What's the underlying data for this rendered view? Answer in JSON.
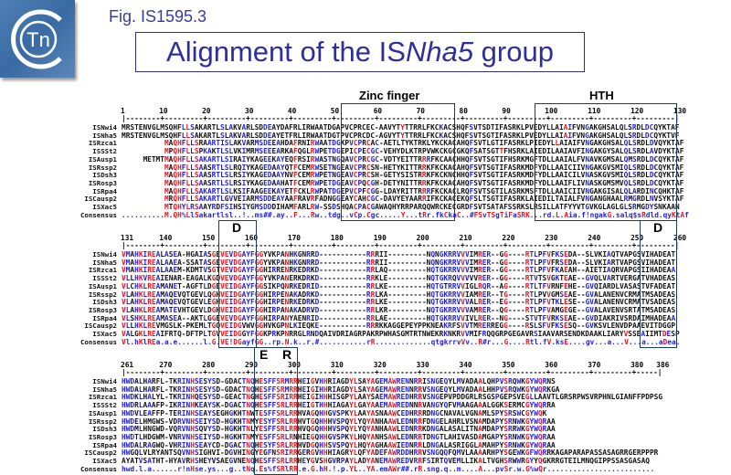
{
  "header": {
    "logo_text": "Tn",
    "figure_label": "Fig. IS1595.3",
    "title_prefix": "Alignment of the IS",
    "title_italic": "Nha5",
    "title_suffix": " group"
  },
  "annotations": {
    "zinc_finger": "Zinc finger",
    "hth": "HTH",
    "d1": "D",
    "d2": "D",
    "e": "E",
    "r": "R"
  },
  "colors": {
    "conserved_high": "#e8141e",
    "conserved_low": "#1e1ee6",
    "box": "#1d3b66",
    "title": "#2f2f9c"
  },
  "alignment": {
    "names": [
      "ISNwi4",
      "ISNha5",
      "ISRzca1",
      "ISSSt2",
      "ISAusp1",
      "ISRssp2",
      "ISDsh3",
      "ISRosp3",
      "ISRpa4",
      "ISCausp2",
      "ISXac5",
      "Consensus"
    ],
    "blocks": [
      {
        "start": 1,
        "end": 130,
        "ticks": [
          1,
          10,
          20,
          30,
          40,
          50,
          60,
          70,
          80,
          90,
          100,
          110,
          120,
          130
        ],
        "rows": [
          "MRSTENVGLMSQHFLLSAKARTLSLAKVARLSDDEAYDAFRLIRWAATDGAPVCPRCEC-AAVYTYTTRRLFKCKACSHQFSVTSDTIFASRKLPVEDYLLAIAIFVNGAKGHSALQLSRDLDCQYKTAF",
          "MRSTENVGLMSQHFLLSAKARTLSLAKVARLSDDEAYETFRLIRWAATDGTPVCPRCDC-AGVYTYTTRRLFKCKACSHQFSVTSGTIFASRKLPVEDYLLAIAIFVNGAKGHSALQLSRDLDCQYKTVF",
          "          MAQHFLLSRAARTISLAKVARMSDEEAHDAFRNIRWAATDGKPVCPRCAC-AETLTYKTRKLYKCKACAHQFSVTLGTIFASRKLPIEDYLLAIAIFVNGAKGHSALQLSRDLDVQYKTAF",
          "          MPQHFLLSPKAKTLSLVKIMRMSEEEARKAFQGLRWPETDGEPICPECGC-VEHYDLKTRPVWKCKGCGKQFSATSGTTFHSRKLAIEDILAAIAVFINGAKGYSALQLSRDLAVDYKTAF",
          "     METMTMAQHFLLSAKARTLSIRAIYKAGEEKAYEQFRSIRWASTNGQAVCPRCGC-VDTYEITTRRRFKCAACHHQFSVTSGTIFHSRKMGFTDLLAAIALFVNAVKGMSALQMSRDLDCQYKTAF",
          "          MAQHFLLSAASRTLSLRQIYKAGEDAAYQTFCEMRWSETNGEAVCPRCSN-HETYKITTRRKFKCKACAHQFSVTSGTIFASRKMDFYDLLAAICIIVNGAKGVSMIQLSRDLDCQYKTAF",
          "          MAQHFLLSAASRTLSLRSIYKAGEDAAYNVFCEMRWPETNGEAVCPRCSH-GETYSISTRRKFKCKNCHHQFSVTSGTIFASRKMDFYDLLAAICILVNASKGVSMIQLSRDLDCQYKTAF",
          "          MAQHFLLSAASRTLSLRSIYKAGEDAAHATFCEMRWPETDGEAVCPQCGH-DETYNITTRRKFKCKACAHQFSVTSGTIFASRKMDFYDLLAAIFLIVNASKGMSMVQLSRDLDCQYKTAF",
          "          MAQHFLLSAKARTLSLKSIFAAGEEKAYETFCKLRWPATDGEPVCPFCGG-LDAYRITTRRRFKCKACLRQFSVTSGTILASRKMSFTDLLAAICIIVNGAKGISALQLARDINCQHKTAF",
          "          MRQHFLLSAKARTLGVVEIARMSDDEAYAAFRAVRFADNGGEAYCAHCGC-DAVYEYAARRIFKCKACEKQFSLTSGTIFASRKLAIEDILTAIALFVNGANGHAALRMGRDLNVSYKTAF",
          "          MTQHYLRSAAYRDFSIHSIYGMSDDDIHAMFARLRW-SSDSHQACPACGAWAQHYRRPARQQWRCKECGRDFSVTSATAFSSRKSLRSILLATFYYVTGVKGLAGLGLSRMGDYSNKAAN",
          "..........M.QH%LlSakartlsl..!..ms##.ay..F...Rw..tdg..vCp.Cgc.....Y...tRr.fkCkaC..#FSvTSgTiFaSRK...rd.L.Aia.f!ngakG.salq$sRdld.qyKtAf"
        ]
      },
      {
        "start": 131,
        "end": 260,
        "ticks": [
          131,
          140,
          150,
          160,
          170,
          180,
          190,
          200,
          210,
          220,
          230,
          240,
          250,
          260
        ],
        "rows": [
          "VMAHKIREALASEA-HGAIASGEVEVDGAYFGGYVKPANHKGNRRD-----------RRRII---------NQNGKRRVVVIMRER--GG----RTLPFVFKSEDA--SLVKIAQTVAPGSVIHADEAT",
          "VMAHKIREALAAEA-SSATASGEVEVDGAYFGGYVKPANHKGNRRD-----------RRRII---------NQNGKRRVVVIMRER--GG----RTLPFVFRSEDA--SLVKIARTVAPGSVIHADEAT",
          "VMAHKIREALAAEM-KDMTVSGTVEVDGAYFGGHIRRENRKEDRKD-----------RRLAQ---------HQTGKRRVVVIMRER--GG----RTLPFVFKAEAH--AIETIAQRVAPGSIIHADEAA",
          "VLLHKVREAIENAR-EAGALKGDVEVDGAYFGGYVKPANERKDRKD-----------RRKLE---------NQTGKRQVVVVVRER--GG----RTVTSVGKTEAE--GVQLVARTVERGATVHADEAS",
          "VLCHKLREAMANET-AGFTLDGEVEIDGAYFGGSIKPQNRKEDRID-----------RRLKE---------HQTGTRRVVIGLRQR--AG----RTLTFVRNFEHE--GVQIARDLVASASTVFADEAT",
          "VLAHKLREAMAQEVQTGEVLQGHVEIDGAYFGGHIRPENAKADRKD-----------RRLKA---------HQTGKRRVVIAMRER--TG----RTLPVVGMSEAE--GVALANENVCRMATMSADEAS",
          "VLAHKLREAMAQEVQTGEVLEGHVEIDGAYFGGHIRPENRKEDRKD-----------RRLKE---------NQTGKRRVVVALRER--EG----RTLPFVTKLESE--GVALANENVCRMATVSADEAS",
          "VLAHKLREAMATEVHTGEVLDGHVEIDGAYFGGHIRPANAKADRVD-----------RRLKR---------NQTGKRRVVVAMRER--QG----RTLPFVAMGEGE--GVALAVENVSRTATMSADEAS",
          "VLSHKLREAMASEA--AKTLGGEVEVDGAYFGGHIRPANYAENRID-----------RRLAE---------HQTGKRRVVIVLRER--NG----STVTFVRKSEAE--GVDIAKRIVSRDAIMHADEAA",
          "VLLHKLREVMGSLK-PKEMLTGQVEIDGVWVGGHVKGPNLKIEQKE-----------RRRKKAGGEPEYPPKNEAKRFSVVTMRERREGG----RSLSFVFKSESQ--GVKSVLENVDPAAEVITDGGP",
          "VALGKLREAIFRTQ-DFTPLTGVVEIDGGYFGGKPRKPNRRGLRNDQAIVDRIAGRPAKRPWHASGMTRTNWEKRKNKRVVMIFRQQGRPGEGAVRSIAAVARSENDKDAAKLIARYVSSEAIIMTDESP",
          "Vl.hKlREa.a.e......l.G.VE!DGayfGG..rp.N.k..r.#...........rR.............qtgkrrvVv..R#r...G....Rtl.fV.ksE....gv...a...V...a...aDea."
        ]
      },
      {
        "start": 261,
        "end": 386,
        "ticks": [
          261,
          270,
          280,
          290,
          300,
          310,
          320,
          330,
          340,
          350,
          360,
          370,
          380,
          386
        ],
        "rows": [
          "HWDALHARFL-TKRINHSESYSD-GDACTNQHESFFSRMRRHEIGVHHRIAGDYLSAYAGEMAWRENNRRISNGEQYLMVADAALQHPVSRQWKGYWQRNS",
          "HWDALHARFL-TKRINHSESYSD-GDACTNQHESFFSRMRRHEIGIHHRIAGDYLSAYAGEMAWRENNRRVSNGEQYLMVADAALHHPVSRQWKGYWQRKGA",
          "HWDKLHALYL-TKRINHQESYSD-GEACTNGHESFFSRIRRHEIGIHHHISGPYLAAYSAEMAWREDHRRVSNGEPVPDDGRLRSGSPGEPSVEGLLAAVTLGRSRPWSVRPHNLGIANFFPDPSG",
          "HWDRLAAAFP-IKRINHKEAYSK-DGACTNQHESFFSRLRRHEIGTHHHIAGAYLGAYAAEMAWREDNNRVANGYQFVMAAGAAALGGKSERMCGYWQRRA",
          "HWDVLEAFFP-TERINHSEAYSEGHGKHTNWTESFFSRLRRHVAGQHHGVSPKYLAAYASNAAWCEDHRRRDNGCNAVALVGNAMLSPYSRSWCGYWQK",
          "HWDELHMGWS-VDRVNHSEIYSD-HGKHTNMYESYFSRLRRHVTGQHHHVSPQYLYQYANHAAWLEDNRRFDNGELAHRLVSNAMDAPYSRNWKGYWQRAA",
          "HWDMLHNGWD-VQRVNHSQVYSD-HGKHTNLYESFFSRLRRHVQGQHHHVSPQYLYQYANHAAWLEDNRRKDNGALASALITNAMDAPYSRRWKGYWQRAA",
          "HWDTLHDGWM-VNRVNHSEIYSD-HGKHTNMYESFFSRLRNHIEGQHHGVSPKYLHQYANHSAWLEDNRRTDNGTLAHIVASDAMGAPYSRNWKGYWQRAA",
          "HWDALRAGWQ-VHRINHSEAYCD-DGACTNQHESYFSRLRRHVDGQHHSVSPQYLHQYAGHAAWIEDNRRLDNGALASRIGGLAMAHPYSRNWKGYWQRAA",
          "HWGQLVLRYANTSQVNHSIGHVI-DGVHINGYEGFNSRIRRGERGVHHHIAGRYLQFYADEFAWRDDHRRVSNGQQFQMVLAAAARHPYSGEWKGFWQRRKAGAPARAPASSASAGRRGERPPPR",
          "AYATVSATHT-HYAVRHSHEYVSAEGVNENQHESFFSRLRRHEYGVSHGVRPAYLADYANEMAWREDVRRFSIRTQVEMLLIKALTVGHSRWWRGYYQGKRRGTEILMNQGIPPSSASGASAQ",
          "hwd.l.a......r!nHse.ys...g..tNq.Es%fSRlRR.e.G.hH.!.p.YL..YA.emAWr##.rR.sng.q..m....A...pvSr.w.G%wQr........................."
        ]
      }
    ]
  }
}
